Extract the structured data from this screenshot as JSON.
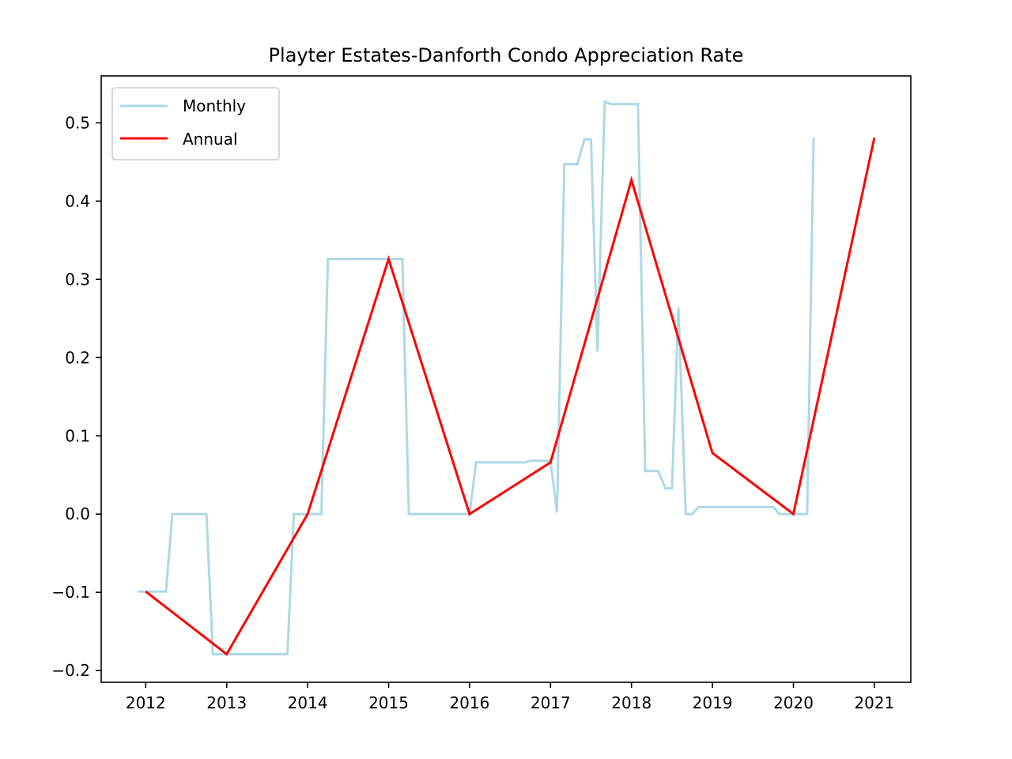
{
  "chart_data": {
    "type": "line",
    "title": "Playter Estates-Danforth Condo Appreciation Rate",
    "xlabel": "",
    "ylabel": "",
    "xlim": [
      2011.45,
      2021.45
    ],
    "ylim": [
      -0.215,
      0.56
    ],
    "x_ticks": [
      2012,
      2013,
      2014,
      2015,
      2016,
      2017,
      2018,
      2019,
      2020,
      2021
    ],
    "y_ticks": [
      -0.2,
      -0.1,
      0.0,
      0.1,
      0.2,
      0.3,
      0.4,
      0.5
    ],
    "y_tick_labels": [
      "−0.2",
      "−0.1",
      "0.0",
      "0.1",
      "0.2",
      "0.3",
      "0.4",
      "0.5"
    ],
    "grid": false,
    "legend": {
      "position": "upper-left",
      "entries": [
        "Monthly",
        "Annual"
      ]
    },
    "series": [
      {
        "name": "Monthly",
        "color": "#add8e6",
        "x": [
          2011.9,
          2012.25,
          2012.33,
          2012.75,
          2012.83,
          2013.75,
          2013.83,
          2014.17,
          2014.25,
          2015.17,
          2015.25,
          2016.0,
          2016.08,
          2016.67,
          2016.75,
          2017.0,
          2017.08,
          2017.17,
          2017.33,
          2017.42,
          2017.5,
          2017.58,
          2017.67,
          2017.75,
          2018.08,
          2018.17,
          2018.33,
          2018.42,
          2018.5,
          2018.58,
          2018.67,
          2018.75,
          2018.83,
          2019.75,
          2019.83,
          2020.17,
          2020.25
        ],
        "y": [
          -0.099,
          -0.099,
          0.0,
          0.0,
          -0.179,
          -0.179,
          0.0,
          0.0,
          0.326,
          0.326,
          0.0,
          0.0,
          0.066,
          0.066,
          0.068,
          0.068,
          0.002,
          0.447,
          0.447,
          0.479,
          0.479,
          0.208,
          0.527,
          0.524,
          0.524,
          0.055,
          0.055,
          0.033,
          0.033,
          0.264,
          0.0,
          0.0,
          0.009,
          0.009,
          0.0,
          0.0,
          0.481
        ]
      },
      {
        "name": "Annual",
        "color": "#ff0000",
        "x": [
          2012,
          2013,
          2014,
          2015,
          2016,
          2017,
          2018,
          2019,
          2020,
          2021
        ],
        "y": [
          -0.099,
          -0.179,
          0.0,
          0.326,
          0.0,
          0.066,
          0.427,
          0.078,
          0.0,
          0.481
        ]
      }
    ]
  }
}
